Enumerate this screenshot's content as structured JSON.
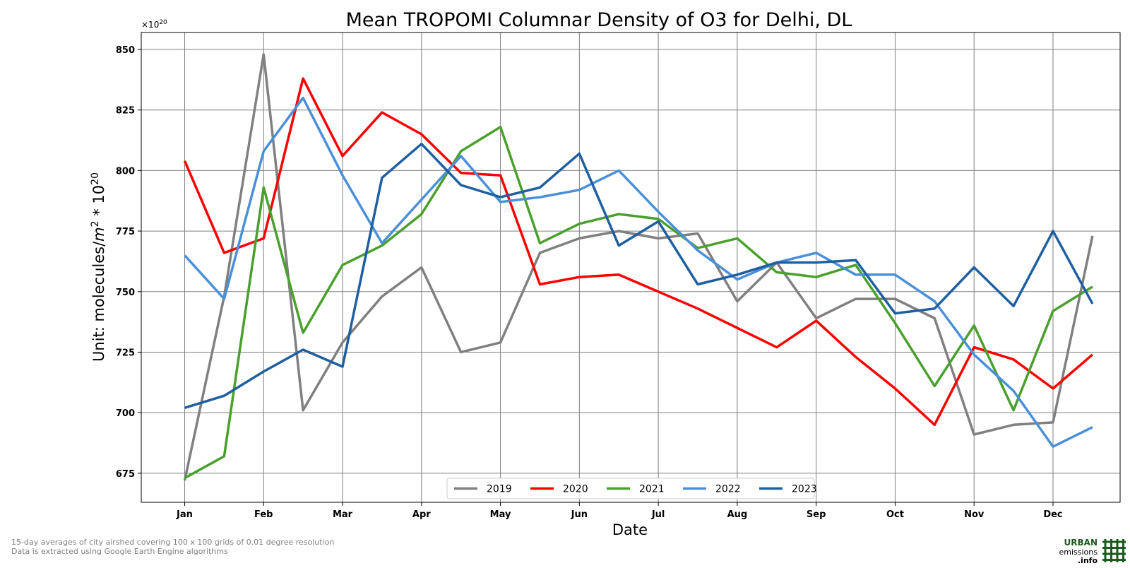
{
  "chart_data": {
    "type": "line",
    "title": "Mean TROPOMI Columnar Density of O3 for Delhi, DL",
    "xlabel": "Date",
    "ylabel_prefix": "Unit: molecules/",
    "ylabel_unit_base": "m",
    "ylabel_unit_exp": "2",
    "ylabel_mid": " * 10",
    "ylabel_exp": "20",
    "offset_base": "×10",
    "offset_exp": "20",
    "ylim": [
      663,
      857
    ],
    "yticks": [
      675,
      700,
      725,
      750,
      775,
      800,
      825,
      850
    ],
    "xlim": [
      -0.55,
      11.85
    ],
    "month_ticks": [
      {
        "x": 0,
        "label": "Jan"
      },
      {
        "x": 1,
        "label": "Feb"
      },
      {
        "x": 2,
        "label": "Mar"
      },
      {
        "x": 3,
        "label": "Apr"
      },
      {
        "x": 4,
        "label": "May"
      },
      {
        "x": 5,
        "label": "Jun"
      },
      {
        "x": 6,
        "label": "Jul"
      },
      {
        "x": 7,
        "label": "Aug"
      },
      {
        "x": 8,
        "label": "Sep"
      },
      {
        "x": 9,
        "label": "Oct"
      },
      {
        "x": 10,
        "label": "Nov"
      },
      {
        "x": 11,
        "label": "Dec"
      }
    ],
    "x": [
      0,
      0.5,
      1,
      1.5,
      2,
      2.5,
      3,
      3.5,
      4,
      4.5,
      5,
      5.5,
      6,
      6.5,
      7,
      7.5,
      8,
      8.5,
      9,
      9.5,
      10,
      10.5,
      11,
      11.5
    ],
    "grid": true,
    "legend_position": "bottom-center",
    "series": [
      {
        "name": "2019",
        "color": "#808080",
        "values": [
          672,
          748,
          848,
          701,
          729,
          748,
          760,
          725,
          729,
          766,
          772,
          775,
          772,
          774,
          746,
          762,
          739,
          747,
          747,
          739,
          691,
          695,
          696,
          773
        ]
      },
      {
        "name": "2020",
        "color": "#ff0000",
        "values": [
          804,
          766,
          772,
          838,
          806,
          824,
          815,
          799,
          798,
          753,
          756,
          757,
          750,
          743,
          735,
          727,
          738,
          723,
          710,
          695,
          727,
          722,
          710,
          724
        ]
      },
      {
        "name": "2021",
        "color": "#4aa02c",
        "values": [
          673,
          682,
          793,
          733,
          761,
          769,
          782,
          808,
          818,
          770,
          778,
          782,
          780,
          768,
          772,
          758,
          756,
          761,
          737,
          711,
          736,
          701,
          742,
          752
        ]
      },
      {
        "name": "2022",
        "color": "#4a90d9",
        "values": [
          765,
          747,
          808,
          830,
          798,
          770,
          788,
          806,
          787,
          789,
          792,
          800,
          783,
          767,
          755,
          762,
          766,
          757,
          757,
          746,
          724,
          709,
          686,
          694
        ]
      },
      {
        "name": "2023",
        "color": "#1f5fa0",
        "values": [
          702,
          707,
          717,
          726,
          719,
          797,
          811,
          794,
          789,
          793,
          807,
          769,
          779,
          753,
          757,
          762,
          762,
          763,
          741,
          743,
          760,
          744,
          775,
          745
        ]
      }
    ]
  },
  "footnotes": [
    "15-day averages of city airshed covering 100 x 100 grids of 0.01 degree resolution",
    "Data is extracted using Google Earth Engine algorithms"
  ],
  "logo": {
    "line1": "URBAN",
    "line2": "emissions",
    "line3": ".info",
    "color": "#1d5a1d"
  }
}
